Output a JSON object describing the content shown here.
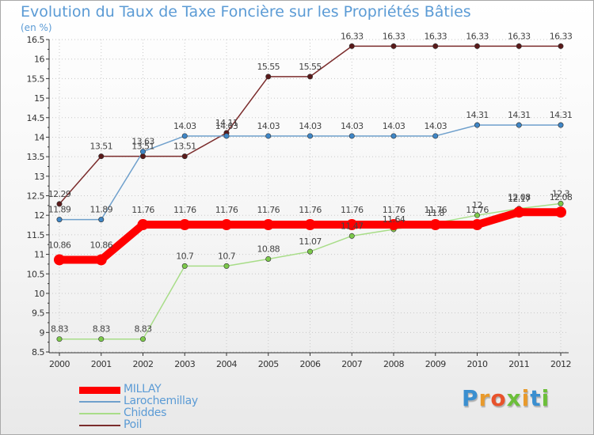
{
  "colors": {
    "title": "#5b9bd5",
    "axis": "#333333",
    "grid": "#c8c8c8"
  },
  "chart_data": {
    "type": "line",
    "title": "Evolution du Taux de Taxe Foncière sur les Propriétés Bâties",
    "ylabel": "(en %)",
    "xlabel": "",
    "ylim": [
      8.5,
      16.5
    ],
    "yticks": [
      "8.5",
      "9",
      "9.5",
      "10",
      "10.5",
      "11",
      "11.5",
      "12",
      "12.5",
      "13",
      "13.5",
      "14",
      "14.5",
      "15",
      "15.5",
      "16",
      "16.5"
    ],
    "x": [
      "2000",
      "2001",
      "2002",
      "2003",
      "2004",
      "2005",
      "2006",
      "2007",
      "2008",
      "2009",
      "2010",
      "2011",
      "2012"
    ],
    "series": [
      {
        "name": "Poil",
        "color": "#7b2c2c",
        "marker": "#5a1a1a",
        "values": [
          12.29,
          13.51,
          13.51,
          13.51,
          14.11,
          15.55,
          15.55,
          16.33,
          16.33,
          16.33,
          16.33,
          16.33,
          16.33
        ],
        "labels": [
          "12.29",
          "13.51",
          "13.51",
          "13.51",
          "14.11",
          "15.55",
          "15.55",
          "16.33",
          "16.33",
          "16.33",
          "16.33",
          "16.33",
          "16.33"
        ]
      },
      {
        "name": "Larochemillay",
        "color": "#6fa0cc",
        "marker": "#3f86c6",
        "values": [
          11.89,
          11.89,
          13.63,
          14.03,
          14.03,
          14.03,
          14.03,
          14.03,
          14.03,
          14.03,
          14.31,
          14.31,
          14.31
        ],
        "labels": [
          "11.89",
          "11.89",
          "13.63",
          "14.03",
          "14.03",
          "14.03",
          "14.03",
          "14.03",
          "14.03",
          "14.03",
          "14.31",
          "14.31",
          "14.31"
        ]
      },
      {
        "name": "Chiddes",
        "color": "#a8dd88",
        "marker": "#7cc94a",
        "values": [
          8.83,
          8.83,
          8.83,
          10.7,
          10.7,
          10.88,
          11.07,
          11.47,
          11.64,
          11.8,
          12.0,
          12.17,
          12.3
        ],
        "labels": [
          "8.83",
          "8.83",
          "8.83",
          "10.7",
          "10.7",
          "10.88",
          "11.07",
          "11.47",
          "11.64",
          "11.8",
          "12",
          "12.17",
          "12.3"
        ]
      },
      {
        "name": "MILLAY",
        "color": "#ff0000",
        "marker": "#ff0000",
        "values": [
          10.86,
          10.86,
          11.76,
          11.76,
          11.76,
          11.76,
          11.76,
          11.76,
          11.76,
          11.76,
          11.76,
          12.08,
          12.08
        ],
        "labels": [
          "10.86",
          "10.86",
          "11.76",
          "11.76",
          "11.76",
          "11.76",
          "11.76",
          "11.76",
          "11.76",
          "11.76",
          "11.76",
          "12.08",
          "12.08"
        ]
      }
    ],
    "legend": [
      {
        "name": "MILLAY",
        "color": "#ff0000"
      },
      {
        "name": "Larochemillay",
        "color": "#6fa0cc"
      },
      {
        "name": "Chiddes",
        "color": "#a8dd88"
      },
      {
        "name": "Poil",
        "color": "#7b2c2c"
      }
    ]
  },
  "logo": {
    "letters": [
      "P",
      "r",
      "o",
      "x",
      "i",
      "t",
      "i"
    ],
    "colors": [
      "#3a8fd0",
      "#e89a2c",
      "#e8532c",
      "#6cbf3a",
      "#e89a2c",
      "#3a8fd0",
      "#6cbf3a"
    ]
  }
}
